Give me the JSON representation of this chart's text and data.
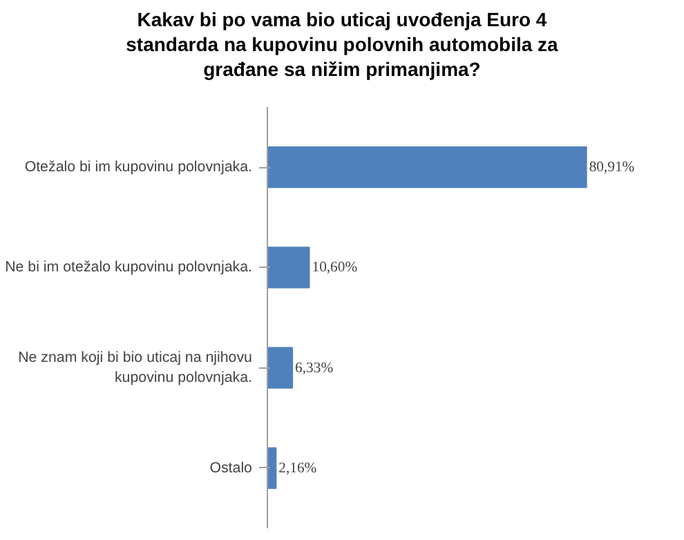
{
  "chart_data": {
    "type": "bar",
    "orientation": "horizontal",
    "title": "Kakav bi po vama bio uticaj uvođenja Euro 4\nstandarda na kupovinu polovnih automobila za\ngrađane sa nižim primanjima?",
    "categories": [
      "Otežalo bi im kupovinu polovnjaka.",
      "Ne bi im otežalo kupovinu polovnjaka.",
      "Ne znam koji bi bio uticaj na njihovu\nkupovinu polovnjaka.",
      "Ostalo"
    ],
    "values": [
      80.91,
      10.6,
      6.33,
      2.16
    ],
    "value_labels": [
      "80,91%",
      "10,60%",
      "6,33%",
      "2,16%"
    ],
    "color": "#4f81bd",
    "grid": false,
    "tick_labels": "y"
  }
}
